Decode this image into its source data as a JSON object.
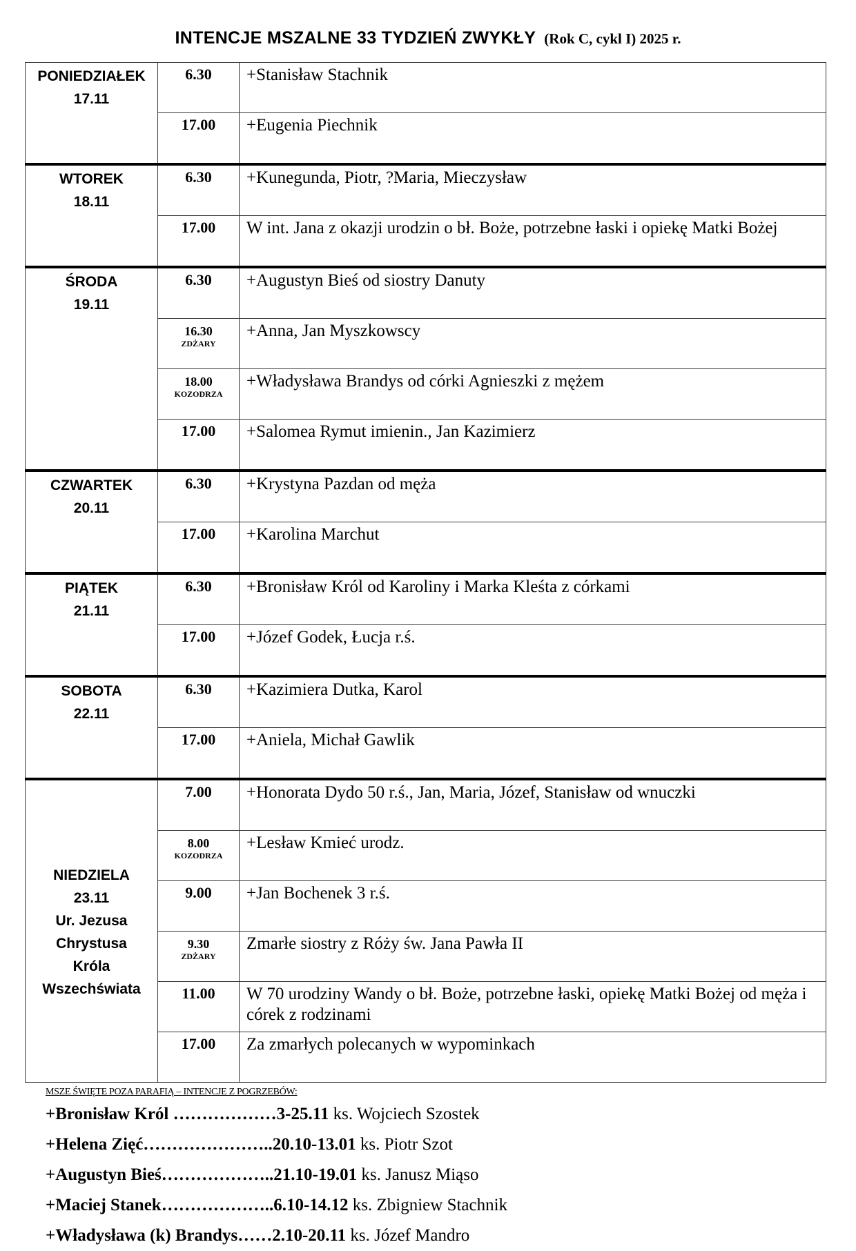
{
  "title": {
    "main": "INTENCJE  MSZALNE  33 TYDZIEŃ  ZWYKŁY",
    "sub": "(Rok C, cykl I) 2025 r."
  },
  "days": [
    {
      "name": "PONIEDZIAŁEK",
      "date": "17.11",
      "masses": [
        {
          "time": "6.30",
          "intention": "+Stanisław Stachnik"
        },
        {
          "time": "17.00",
          "intention": "+Eugenia Piechnik"
        }
      ]
    },
    {
      "name": "WTOREK",
      "date": "18.11",
      "masses": [
        {
          "time": "6.30",
          "intention": "+Kunegunda, Piotr, ?Maria, Mieczysław"
        },
        {
          "time": "17.00",
          "intention": "W int. Jana z okazji urodzin o bł. Boże, potrzebne łaski i opiekę Matki Bożej"
        }
      ]
    },
    {
      "name": "ŚRODA",
      "date": "19.11",
      "masses": [
        {
          "time": "6.30",
          "intention": "+Augustyn Bieś od siostry Danuty"
        },
        {
          "time": "16.30",
          "location": "ZDŻARY",
          "intention": "+Anna, Jan Myszkowscy"
        },
        {
          "time": "18.00",
          "location": "KOZODRZA",
          "intention": "+Władysława Brandys od córki Agnieszki z mężem"
        },
        {
          "time": "17.00",
          "intention": "+Salomea Rymut imienin., Jan Kazimierz"
        }
      ]
    },
    {
      "name": "CZWARTEK",
      "date": "20.11",
      "masses": [
        {
          "time": "6.30",
          "intention": "+Krystyna Pazdan od męża"
        },
        {
          "time": "17.00",
          "intention": "+Karolina Marchut"
        }
      ]
    },
    {
      "name": "PIĄTEK",
      "date": "21.11",
      "masses": [
        {
          "time": "6.30",
          "intention": "+Bronisław Król od Karoliny i Marka Kleśta z córkami"
        },
        {
          "time": "17.00",
          "intention": "+Józef Godek, Łucja r.ś."
        }
      ]
    },
    {
      "name": "SOBOTA",
      "date": "22.11",
      "masses": [
        {
          "time": "6.30",
          "intention": "+Kazimiera Dutka, Karol"
        },
        {
          "time": "17.00",
          "intention": "+Aniela, Michał Gawlik"
        }
      ]
    },
    {
      "name": "NIEDZIELA",
      "date": "23.11",
      "feast": "Ur. Jezusa Chrystusa Króla Wszechświata",
      "masses": [
        {
          "time": "7.00",
          "intention": "+Honorata Dydo 50 r.ś., Jan, Maria, Józef, Stanisław od wnuczki"
        },
        {
          "time": "8.00",
          "location": "KOZODRZA",
          "intention": "+Lesław Kmieć urodz."
        },
        {
          "time": "9.00",
          "intention": "+Jan Bochenek 3 r.ś."
        },
        {
          "time": "9.30",
          "location": "ZDŻARY",
          "intention": "Zmarłe siostry z Róży św. Jana Pawła II"
        },
        {
          "time": "11.00",
          "intention": "W 70 urodziny Wandy o bł. Boże, potrzebne łaski, opiekę Matki Bożej od męża i córek z rodzinami"
        },
        {
          "time": "17.00",
          "intention": "Za zmarłych polecanych w wypominkach"
        }
      ]
    }
  ],
  "outside": {
    "heading": "MSZE ŚWIĘTE  POZA PARAFIĄ – INTENCJE Z POGRZEBÓW:",
    "items": [
      {
        "name": "+Bronisław Król",
        "dots": " ………………",
        "dates": "3-25.11",
        "priest": "ks. Wojciech Szostek"
      },
      {
        "name": "+Helena Zięć",
        "dots": "…………………..",
        "dates": "20.10-13.01",
        "priest": "ks. Piotr Szot"
      },
      {
        "name": "+Augustyn Bieś",
        "dots": "………………..",
        "dates": "21.10-19.01",
        "priest": "ks. Janusz Miąso"
      },
      {
        "name": "+Maciej Stanek",
        "dots": "………………..",
        "dates": "6.10-14.12",
        "priest": "ks. Zbigniew Stachnik"
      },
      {
        "name": "+Władysława (k) Brandys",
        "dots": "……",
        "dates": "2.10-20.11",
        "priest": "ks. Józef Mandro"
      }
    ]
  }
}
